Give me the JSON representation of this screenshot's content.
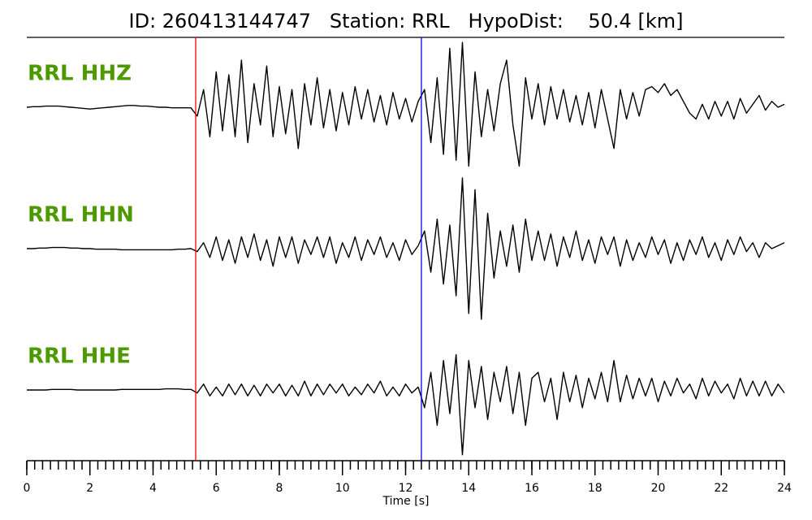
{
  "chart_data": {
    "type": "seismogram",
    "title": "ID: 260413144747   Station: RRL   HypoDist:    50.4 [km]",
    "xlabel": "Time [s]",
    "xlim": [
      0,
      24
    ],
    "xticks": [
      0,
      2,
      4,
      6,
      8,
      10,
      12,
      14,
      16,
      18,
      20,
      22,
      24
    ],
    "xminorticks": [
      0,
      0.25,
      0.5,
      0.75,
      1,
      1.25,
      1.5,
      1.75,
      2,
      2.25,
      2.5,
      2.75,
      3,
      3.25,
      3.5,
      3.75,
      4,
      4.25,
      4.5,
      4.75,
      5,
      5.25,
      5.5,
      5.75,
      6,
      6.25,
      6.5,
      6.75,
      7,
      7.25,
      7.5,
      7.75,
      8,
      8.25,
      8.5,
      8.75,
      9,
      9.25,
      9.5,
      9.75,
      10,
      10.25,
      10.5,
      10.75,
      11,
      11.25,
      11.5,
      11.75,
      12,
      12.25,
      12.5,
      12.75,
      13,
      13.25,
      13.5,
      13.75,
      14,
      14.25,
      14.5,
      14.75,
      15,
      15.25,
      15.5,
      15.75,
      16,
      16.25,
      16.5,
      16.75,
      17,
      17.25,
      17.5,
      17.75,
      18,
      18.25,
      18.5,
      18.75,
      19,
      19.25,
      19.5,
      19.75,
      20,
      20.25,
      20.5,
      20.75,
      21,
      21.25,
      21.5,
      21.75,
      22,
      22.25,
      22.5,
      22.75,
      23,
      23.25,
      23.5,
      23.75,
      24
    ],
    "markers": [
      {
        "x": 5.35,
        "color": "#ff0000"
      },
      {
        "x": 12.5,
        "color": "#0000ff"
      }
    ],
    "label_color": "#4c9900",
    "x": [
      0,
      0.2,
      0.4,
      0.6,
      0.8,
      1,
      1.2,
      1.4,
      1.6,
      1.8,
      2,
      2.2,
      2.4,
      2.6,
      2.8,
      3,
      3.2,
      3.4,
      3.6,
      3.8,
      4,
      4.2,
      4.4,
      4.6,
      4.8,
      5,
      5.2,
      5.4,
      5.6,
      5.8,
      6,
      6.2,
      6.4,
      6.6,
      6.8,
      7,
      7.2,
      7.4,
      7.6,
      7.8,
      8,
      8.2,
      8.4,
      8.6,
      8.8,
      9,
      9.2,
      9.4,
      9.6,
      9.8,
      10,
      10.2,
      10.4,
      10.6,
      10.8,
      11,
      11.2,
      11.4,
      11.6,
      11.8,
      12,
      12.2,
      12.4,
      12.6,
      12.8,
      13,
      13.2,
      13.4,
      13.6,
      13.8,
      14,
      14.2,
      14.4,
      14.6,
      14.8,
      15,
      15.2,
      15.4,
      15.6,
      15.8,
      16,
      16.2,
      16.4,
      16.6,
      16.8,
      17,
      17.2,
      17.4,
      17.6,
      17.8,
      18,
      18.2,
      18.4,
      18.6,
      18.8,
      19,
      19.2,
      19.4,
      19.6,
      19.8,
      20,
      20.2,
      20.4,
      20.6,
      20.8,
      21,
      21.2,
      21.4,
      21.6,
      21.8,
      22,
      22.2,
      22.4,
      22.6,
      22.8,
      23,
      23.2,
      23.4,
      23.6,
      23.8,
      24
    ],
    "series": [
      {
        "name": "RRL HHZ",
        "color": "#000000",
        "ylim": [
          -1.2,
          1.2
        ],
        "values": [
          0,
          0.01,
          0.01,
          0.02,
          0.02,
          0.02,
          0.01,
          0,
          -0.01,
          -0.02,
          -0.03,
          -0.02,
          -0.01,
          0,
          0.01,
          0.02,
          0.03,
          0.03,
          0.02,
          0.02,
          0.01,
          0,
          0,
          -0.01,
          -0.01,
          -0.01,
          -0.01,
          -0.15,
          0.3,
          -0.5,
          0.6,
          -0.4,
          0.55,
          -0.5,
          0.8,
          -0.6,
          0.4,
          -0.3,
          0.7,
          -0.5,
          0.35,
          -0.45,
          0.3,
          -0.7,
          0.4,
          -0.3,
          0.5,
          -0.35,
          0.3,
          -0.4,
          0.25,
          -0.3,
          0.35,
          -0.2,
          0.3,
          -0.25,
          0.2,
          -0.3,
          0.25,
          -0.2,
          0.15,
          -0.25,
          0.1,
          0.3,
          -0.6,
          0.5,
          -0.8,
          1.0,
          -0.9,
          1.1,
          -1.0,
          0.6,
          -0.5,
          0.3,
          -0.4,
          0.4,
          0.8,
          -0.3,
          -1.0,
          0.5,
          -0.2,
          0.4,
          -0.3,
          0.35,
          -0.2,
          0.3,
          -0.25,
          0.2,
          -0.3,
          0.25,
          -0.35,
          0.3,
          -0.2,
          -0.7,
          0.3,
          -0.2,
          0.25,
          -0.15,
          0.3,
          0.35,
          0.25,
          0.4,
          0.2,
          0.3,
          0.1,
          -0.1,
          -0.2,
          0.05,
          -0.2,
          0.1,
          -0.15,
          0.1,
          -0.2,
          0.15,
          -0.1,
          0.05,
          0.2,
          -0.05,
          0.1,
          0.0,
          0.05
        ]
      },
      {
        "name": "RRL HHN",
        "color": "#000000",
        "ylim": [
          -1.2,
          1.2
        ],
        "values": [
          0,
          0,
          0.01,
          0.01,
          0.02,
          0.02,
          0.02,
          0.01,
          0.01,
          0,
          0,
          -0.01,
          -0.01,
          -0.01,
          -0.01,
          -0.02,
          -0.02,
          -0.02,
          -0.02,
          -0.02,
          -0.02,
          -0.02,
          -0.02,
          -0.02,
          -0.01,
          -0.01,
          0,
          -0.05,
          0.1,
          -0.15,
          0.2,
          -0.2,
          0.15,
          -0.25,
          0.2,
          -0.15,
          0.25,
          -0.2,
          0.15,
          -0.3,
          0.2,
          -0.15,
          0.2,
          -0.25,
          0.15,
          -0.1,
          0.2,
          -0.15,
          0.2,
          -0.25,
          0.1,
          -0.15,
          0.2,
          -0.2,
          0.15,
          -0.1,
          0.2,
          -0.15,
          0.1,
          -0.2,
          0.15,
          -0.1,
          0.05,
          0.3,
          -0.4,
          0.5,
          -0.6,
          0.4,
          -0.8,
          1.2,
          -1.1,
          1.0,
          -1.2,
          0.6,
          -0.5,
          0.3,
          -0.3,
          0.4,
          -0.4,
          0.5,
          -0.2,
          0.3,
          -0.2,
          0.25,
          -0.3,
          0.2,
          -0.15,
          0.3,
          -0.2,
          0.15,
          -0.25,
          0.2,
          -0.1,
          0.2,
          -0.3,
          0.15,
          -0.2,
          0.1,
          -0.15,
          0.2,
          -0.1,
          0.15,
          -0.25,
          0.1,
          -0.2,
          0.15,
          -0.1,
          0.2,
          -0.15,
          0.1,
          -0.2,
          0.15,
          -0.1,
          0.2,
          -0.05,
          0.1,
          -0.15,
          0.1,
          0,
          0.05,
          0.1
        ]
      },
      {
        "name": "RRL HHE",
        "color": "#000000",
        "ylim": [
          -1.2,
          1.2
        ],
        "values": [
          0,
          0,
          0,
          0,
          0.01,
          0.01,
          0.01,
          0.01,
          0,
          0,
          0,
          0,
          0,
          0,
          0,
          0.01,
          0.01,
          0.01,
          0.01,
          0.01,
          0.01,
          0.01,
          0.02,
          0.02,
          0.02,
          0.01,
          0.01,
          -0.05,
          0.1,
          -0.1,
          0.05,
          -0.1,
          0.1,
          -0.08,
          0.1,
          -0.1,
          0.08,
          -0.1,
          0.1,
          -0.05,
          0.1,
          -0.1,
          0.08,
          -0.1,
          0.15,
          -0.1,
          0.1,
          -0.08,
          0.1,
          -0.05,
          0.1,
          -0.1,
          0.05,
          -0.08,
          0.1,
          -0.05,
          0.15,
          -0.1,
          0.05,
          -0.1,
          0.1,
          -0.05,
          0.05,
          -0.3,
          0.3,
          -0.6,
          0.5,
          -0.4,
          0.6,
          -1.1,
          0.5,
          -0.3,
          0.4,
          -0.5,
          0.3,
          -0.2,
          0.4,
          -0.4,
          0.3,
          -0.6,
          0.2,
          0.3,
          -0.2,
          0.2,
          -0.5,
          0.3,
          -0.2,
          0.25,
          -0.3,
          0.2,
          -0.15,
          0.3,
          -0.2,
          0.5,
          -0.2,
          0.25,
          -0.15,
          0.2,
          -0.1,
          0.2,
          -0.2,
          0.15,
          -0.1,
          0.2,
          -0.05,
          0.1,
          -0.15,
          0.2,
          -0.1,
          0.15,
          -0.05,
          0.1,
          -0.15,
          0.2,
          -0.1,
          0.15,
          -0.1,
          0.15,
          -0.1,
          0.1,
          -0.05
        ]
      }
    ]
  }
}
